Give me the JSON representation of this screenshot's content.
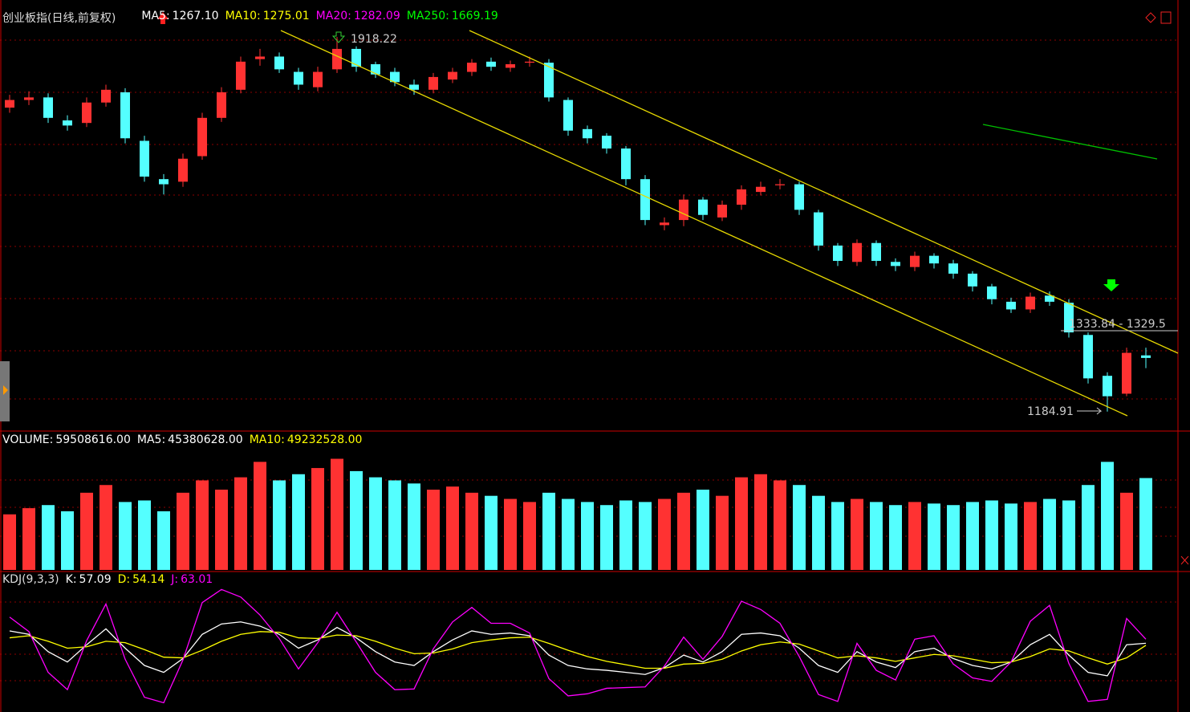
{
  "chart_data": [
    {
      "type": "candlestick",
      "title": "创业板指(日线,前复权)",
      "legend": [
        {
          "name": "MA5:",
          "label": "1267.10",
          "color": "#ffffff"
        },
        {
          "name": "MA10:",
          "label": "1275.01",
          "color": "#ffff00"
        },
        {
          "name": "MA20:",
          "label": "1282.09",
          "color": "#ff00ff"
        },
        {
          "name": "MA250:",
          "label": "1669.19",
          "color": "#00ff00"
        }
      ],
      "annotations": [
        "1918.22",
        "1184.91",
        "1333.84 - 1329.5"
      ],
      "up_color": "#ff3232",
      "down_color": "#54ffff",
      "ylim": [
        1150,
        1975
      ],
      "open": [
        1780,
        1795,
        1800,
        1755,
        1750,
        1790,
        1810,
        1715,
        1640,
        1635,
        1685,
        1760,
        1815,
        1875,
        1880,
        1850,
        1820,
        1855,
        1895,
        1865,
        1850,
        1825,
        1815,
        1835,
        1850,
        1870,
        1858,
        1868,
        1868,
        1795,
        1738,
        1725,
        1700,
        1640,
        1550,
        1560,
        1600,
        1565,
        1590,
        1615,
        1628,
        1630,
        1575,
        1510,
        1478,
        1515,
        1478,
        1468,
        1490,
        1475,
        1455,
        1430,
        1400,
        1385,
        1412,
        1398,
        1335,
        1255,
        1220,
        1295
      ],
      "high": [
        1805,
        1812,
        1808,
        1765,
        1800,
        1825,
        1818,
        1725,
        1650,
        1690,
        1770,
        1820,
        1880,
        1895,
        1888,
        1858,
        1860,
        1918.22,
        1900,
        1870,
        1858,
        1835,
        1848,
        1858,
        1875,
        1878,
        1872,
        1880,
        1875,
        1800,
        1745,
        1730,
        1705,
        1648,
        1565,
        1610,
        1605,
        1598,
        1628,
        1635,
        1640,
        1635,
        1580,
        1515,
        1522,
        1520,
        1485,
        1498,
        1495,
        1482,
        1460,
        1435,
        1408,
        1418,
        1420,
        1405,
        1340,
        1262,
        1310,
        1310
      ],
      "low": [
        1770,
        1785,
        1750,
        1735,
        1742,
        1782,
        1710,
        1635,
        1610,
        1625,
        1678,
        1752,
        1808,
        1862,
        1848,
        1815,
        1812,
        1848,
        1850,
        1838,
        1822,
        1805,
        1808,
        1828,
        1842,
        1852,
        1850,
        1860,
        1792,
        1725,
        1710,
        1690,
        1628,
        1550,
        1540,
        1548,
        1560,
        1558,
        1580,
        1608,
        1620,
        1570,
        1500,
        1470,
        1470,
        1470,
        1460,
        1460,
        1465,
        1445,
        1420,
        1395,
        1378,
        1378,
        1392,
        1330,
        1240,
        1184.91,
        1215,
        1270
      ],
      "close": [
        1795,
        1800,
        1760,
        1745,
        1790,
        1815,
        1720,
        1645,
        1630,
        1680,
        1760,
        1810,
        1870,
        1880,
        1855,
        1825,
        1850,
        1895,
        1860,
        1845,
        1830,
        1815,
        1840,
        1850,
        1868,
        1860,
        1865,
        1870,
        1800,
        1735,
        1720,
        1700,
        1640,
        1560,
        1555,
        1600,
        1570,
        1590,
        1620,
        1625,
        1630,
        1580,
        1510,
        1480,
        1515,
        1480,
        1470,
        1490,
        1475,
        1455,
        1430,
        1405,
        1385,
        1410,
        1400,
        1340,
        1250,
        1215,
        1300,
        1290
      ]
    },
    {
      "type": "bar",
      "legend": [
        {
          "name": "VOLUME:",
          "label": "59508616.00",
          "color": "#ffffff"
        },
        {
          "name": "MA5:",
          "label": "45380628.00",
          "color": "#ffffff"
        },
        {
          "name": "MA10:",
          "label": "49232528.00",
          "color": "#ffff00"
        }
      ],
      "ylim": [
        0,
        78000000
      ],
      "values": [
        36000000,
        40000000,
        42000000,
        38000000,
        50000000,
        55000000,
        44000000,
        45000000,
        38000000,
        50000000,
        58000000,
        52000000,
        60000000,
        70000000,
        58000000,
        62000000,
        66000000,
        72000000,
        64000000,
        60000000,
        58000000,
        56000000,
        52000000,
        54000000,
        50000000,
        48000000,
        46000000,
        44000000,
        50000000,
        46000000,
        44000000,
        42000000,
        45000000,
        44000000,
        46000000,
        50000000,
        52000000,
        48000000,
        60000000,
        62000000,
        58000000,
        55000000,
        48000000,
        44000000,
        46000000,
        44000000,
        42000000,
        44000000,
        43000000,
        42000000,
        44000000,
        45000000,
        43000000,
        44000000,
        46000000,
        45000000,
        55000000,
        70000000,
        50000000,
        59508616
      ]
    },
    {
      "type": "line",
      "title": "KDJ(9,3,3)",
      "ylim": [
        -40,
        140
      ],
      "series": [
        {
          "name": "K:",
          "label": "57.09",
          "color": "#ffffff",
          "values": [
            75,
            70,
            45,
            30,
            55,
            78,
            50,
            25,
            15,
            35,
            70,
            85,
            88,
            82,
            70,
            50,
            62,
            80,
            65,
            45,
            30,
            25,
            45,
            62,
            75,
            70,
            72,
            68,
            40,
            25,
            20,
            18,
            15,
            12,
            22,
            40,
            30,
            45,
            70,
            72,
            68,
            50,
            25,
            15,
            45,
            30,
            22,
            45,
            50,
            35,
            25,
            20,
            30,
            55,
            70,
            40,
            15,
            10,
            55,
            57.09
          ]
        },
        {
          "name": "D:",
          "label": "54.14",
          "color": "#ffff00",
          "values": [
            65,
            68,
            60,
            50,
            52,
            60,
            58,
            48,
            37,
            36,
            47,
            60,
            70,
            74,
            73,
            65,
            64,
            69,
            68,
            60,
            50,
            42,
            43,
            49,
            58,
            62,
            65,
            66,
            57,
            47,
            38,
            31,
            26,
            21,
            21,
            27,
            28,
            34,
            46,
            55,
            59,
            56,
            46,
            36,
            39,
            36,
            31,
            36,
            41,
            39,
            34,
            29,
            30,
            38,
            49,
            46,
            36,
            27,
            36,
            54.14
          ]
        },
        {
          "name": "J:",
          "label": "63.01",
          "color": "#ff00ff",
          "values": [
            95,
            74,
            15,
            -10,
            61,
            114,
            34,
            -21,
            -29,
            33,
            116,
            135,
            124,
            98,
            64,
            20,
            58,
            102,
            59,
            15,
            -10,
            -9,
            49,
            88,
            109,
            86,
            86,
            72,
            6,
            -19,
            -16,
            -8,
            -7,
            -6,
            24,
            66,
            34,
            67,
            118,
            106,
            86,
            38,
            -17,
            -27,
            57,
            18,
            4,
            63,
            68,
            27,
            7,
            2,
            30,
            89,
            112,
            28,
            -27,
            -24,
            93,
            63.01
          ]
        }
      ]
    }
  ]
}
